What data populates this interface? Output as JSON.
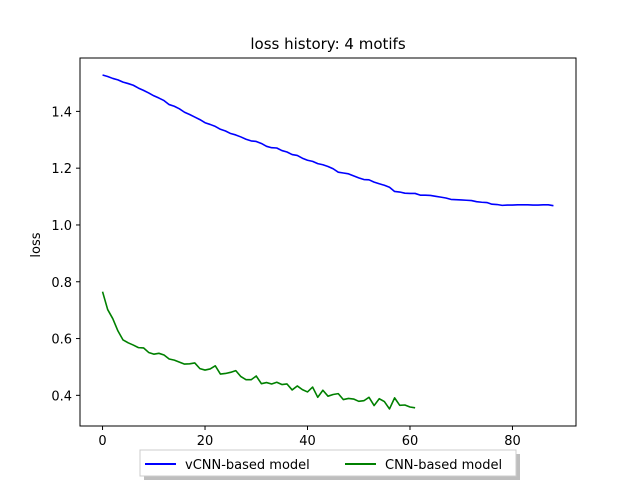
{
  "chart_data": {
    "type": "line",
    "title": "loss history:  4 motifs",
    "xlabel": "",
    "ylabel": "loss",
    "xlim": [
      -4.4,
      92.4
    ],
    "ylim": [
      0.292,
      1.588
    ],
    "xticks": [
      0,
      20,
      40,
      60,
      80
    ],
    "yticks": [
      0.4,
      0.6,
      0.8,
      1.0,
      1.2,
      1.4
    ],
    "ytick_labels": [
      "0.4",
      "0.6",
      "0.8",
      "1.0",
      "1.2",
      "1.4"
    ],
    "xtick_labels": [
      "0",
      "20",
      "40",
      "60",
      "80"
    ],
    "grid": false,
    "legend_position": "bottom-center",
    "series": [
      {
        "name": "vCNN-based model",
        "color": "#0000ff",
        "values": [
          1.528,
          1.523,
          1.516,
          1.511,
          1.503,
          1.498,
          1.492,
          1.482,
          1.474,
          1.465,
          1.455,
          1.447,
          1.438,
          1.424,
          1.418,
          1.409,
          1.397,
          1.389,
          1.38,
          1.371,
          1.36,
          1.354,
          1.347,
          1.337,
          1.331,
          1.322,
          1.317,
          1.31,
          1.302,
          1.296,
          1.294,
          1.287,
          1.277,
          1.272,
          1.271,
          1.262,
          1.257,
          1.248,
          1.245,
          1.235,
          1.228,
          1.224,
          1.216,
          1.212,
          1.206,
          1.198,
          1.186,
          1.183,
          1.18,
          1.173,
          1.166,
          1.16,
          1.159,
          1.151,
          1.145,
          1.14,
          1.133,
          1.118,
          1.116,
          1.112,
          1.111,
          1.111,
          1.105,
          1.105,
          1.104,
          1.101,
          1.098,
          1.095,
          1.09,
          1.089,
          1.088,
          1.087,
          1.086,
          1.082,
          1.08,
          1.079,
          1.073,
          1.072,
          1.069,
          1.07,
          1.07,
          1.071,
          1.071,
          1.071,
          1.07,
          1.07,
          1.071,
          1.071,
          1.068
        ]
      },
      {
        "name": "CNN-based model",
        "color": "#008000",
        "values": [
          0.765,
          0.702,
          0.67,
          0.627,
          0.595,
          0.585,
          0.577,
          0.568,
          0.567,
          0.551,
          0.545,
          0.548,
          0.542,
          0.528,
          0.524,
          0.517,
          0.51,
          0.511,
          0.514,
          0.494,
          0.489,
          0.493,
          0.504,
          0.475,
          0.477,
          0.481,
          0.487,
          0.466,
          0.455,
          0.455,
          0.468,
          0.441,
          0.445,
          0.44,
          0.446,
          0.438,
          0.44,
          0.419,
          0.433,
          0.42,
          0.412,
          0.429,
          0.393,
          0.418,
          0.397,
          0.403,
          0.406,
          0.385,
          0.389,
          0.387,
          0.379,
          0.381,
          0.393,
          0.364,
          0.388,
          0.378,
          0.352,
          0.391,
          0.365,
          0.366,
          0.359,
          0.356
        ]
      }
    ]
  }
}
